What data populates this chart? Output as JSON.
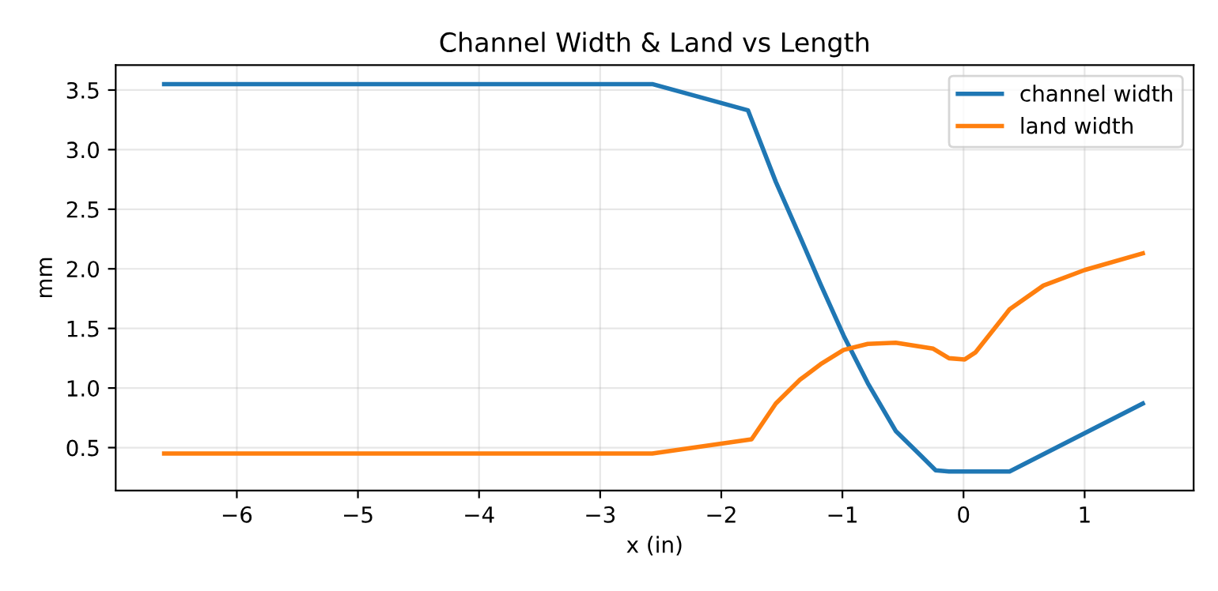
{
  "chart_data": {
    "type": "line",
    "title": "Channel Width & Land vs Length",
    "xlabel": "x (in)",
    "ylabel": "mm",
    "xlim": [
      -7.0,
      1.9
    ],
    "xticks": [
      {
        "value": -6,
        "label": "−6"
      },
      {
        "value": -5,
        "label": "−5"
      },
      {
        "value": -4,
        "label": "−4"
      },
      {
        "value": -3,
        "label": "−3"
      },
      {
        "value": -2,
        "label": "−2"
      },
      {
        "value": -1,
        "label": "−1"
      },
      0,
      1
    ],
    "ylim": [
      0.14,
      3.71
    ],
    "yticks": [
      {
        "value": 0.5,
        "label": "0.5"
      },
      {
        "value": 1.0,
        "label": "1.0"
      },
      {
        "value": 1.5,
        "label": "1.5"
      },
      {
        "value": 2.0,
        "label": "2.0"
      },
      {
        "value": 2.5,
        "label": "2.5"
      },
      {
        "value": 3.0,
        "label": "3.0"
      },
      {
        "value": 3.5,
        "label": "3.5"
      }
    ],
    "grid": true,
    "legend": "top right",
    "marker": "none",
    "line_style": "solid",
    "series": [
      {
        "name": "channel width",
        "color": "#1f77b4",
        "x": [
          -6.6,
          -2.57,
          -1.78,
          -1.55,
          -1.35,
          -1.18,
          -0.99,
          -0.79,
          -0.56,
          -0.35,
          -0.23,
          -0.12,
          0.38,
          1.48
        ],
        "values": [
          3.55,
          3.55,
          3.33,
          2.73,
          2.27,
          1.87,
          1.44,
          1.04,
          0.64,
          0.43,
          0.31,
          0.3,
          0.3,
          0.87
        ]
      },
      {
        "name": "land width",
        "color": "#ff7f0e",
        "x": [
          -6.6,
          -2.57,
          -1.75,
          -1.55,
          -1.35,
          -1.18,
          -0.99,
          -0.79,
          -0.56,
          -0.25,
          -0.12,
          0.01,
          0.1,
          0.38,
          0.66,
          1.0,
          1.48
        ],
        "values": [
          0.45,
          0.45,
          0.57,
          0.87,
          1.07,
          1.2,
          1.32,
          1.37,
          1.38,
          1.33,
          1.25,
          1.24,
          1.3,
          1.66,
          1.86,
          1.99,
          2.13
        ]
      }
    ]
  }
}
